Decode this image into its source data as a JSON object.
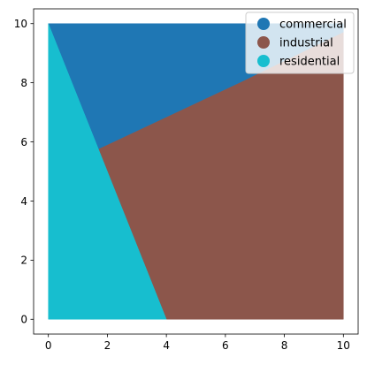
{
  "chart_data": {
    "type": "polygon-map",
    "title": "",
    "xlabel": "",
    "ylabel": "",
    "xlim": [
      -0.5,
      10.5
    ],
    "ylim": [
      -0.5,
      10.5
    ],
    "xticks": [
      0,
      2,
      4,
      6,
      8,
      10
    ],
    "yticks": [
      0,
      2,
      4,
      6,
      8,
      10
    ],
    "grid": false,
    "legend": {
      "placement": "top-right",
      "marker": "circle"
    },
    "regions": [
      {
        "name": "commercial",
        "color": "#1f77b4",
        "polygons": [
          [
            [
              0,
              10
            ],
            [
              10,
              10
            ],
            [
              10,
              9.7
            ],
            [
              6.5,
              8.0
            ],
            [
              1.7,
              5.75
            ]
          ]
        ]
      },
      {
        "name": "industrial",
        "color": "#8c564b",
        "polygons": [
          [
            [
              1.7,
              5.75
            ],
            [
              6.5,
              8.0
            ],
            [
              10,
              9.7
            ],
            [
              10,
              0
            ],
            [
              4,
              0
            ]
          ]
        ]
      },
      {
        "name": "residential",
        "color": "#17becf",
        "polygons": [
          [
            [
              0,
              10
            ],
            [
              1.7,
              5.75
            ],
            [
              4,
              0
            ],
            [
              0,
              0
            ]
          ]
        ]
      }
    ]
  }
}
